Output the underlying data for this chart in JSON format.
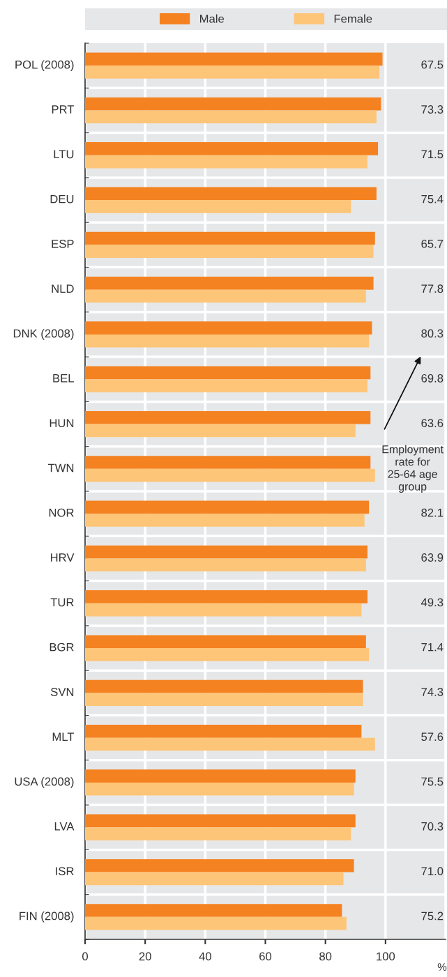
{
  "chart_data": {
    "type": "bar",
    "orientation": "horizontal",
    "categories": [
      "POL (2008)",
      "PRT",
      "LTU",
      "DEU",
      "ESP",
      "NLD",
      "DNK (2008)",
      "BEL",
      "HUN",
      "TWN",
      "NOR",
      "HRV",
      "TUR",
      "BGR",
      "SVN",
      "MLT",
      "USA (2008)",
      "LVA",
      "ISR",
      "FIN (2008)"
    ],
    "series": [
      {
        "name": "Male",
        "color": "#f58220",
        "values": [
          99,
          98.5,
          97.5,
          97,
          96.5,
          96,
          95.5,
          95,
          95,
          95,
          94.5,
          94,
          94,
          93.5,
          92.5,
          92,
          90,
          90,
          89.5,
          85.5
        ]
      },
      {
        "name": "Female",
        "color": "#fdc578",
        "values": [
          98,
          97,
          94,
          88.5,
          96,
          93.5,
          94.5,
          94,
          90,
          96.5,
          93,
          93.5,
          92,
          94.5,
          92.5,
          96.5,
          89.5,
          88.5,
          86,
          87
        ]
      }
    ],
    "xlim": [
      0,
      120
    ],
    "xticks": [
      0,
      20,
      40,
      60,
      80,
      100
    ],
    "xlabel": "%",
    "grid": "x",
    "legend": "top",
    "annotations": [
      "67.5",
      "73.3",
      "71.5",
      "75.4",
      "65.7",
      "77.8",
      "80.3",
      "69.8",
      "63.6",
      "82.1",
      "63.9",
      "49.3",
      "71.4",
      "74.3",
      "57.6",
      "75.5",
      "70.3",
      "71.0",
      "75.2",
      "Employment\nrate for\n25-64 age\ngroup"
    ]
  }
}
